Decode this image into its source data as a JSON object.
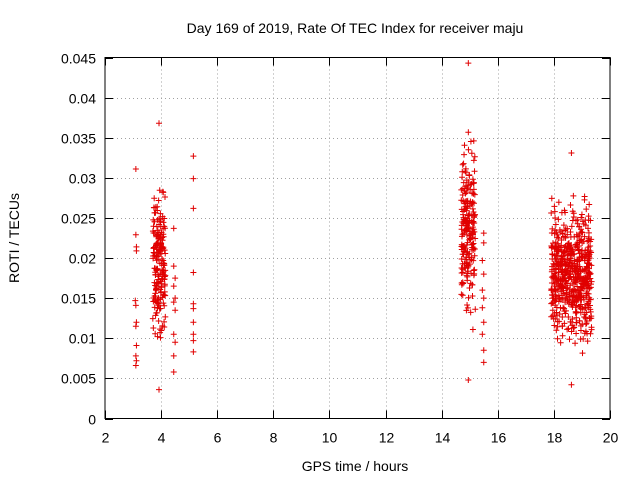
{
  "chart_data": {
    "type": "scatter",
    "title": "Day 169 of 2019, Rate Of TEC Index for receiver maju",
    "xlabel": "GPS time / hours",
    "ylabel": "ROTI / TECUs",
    "xlim": [
      2,
      20
    ],
    "ylim": [
      0,
      0.045
    ],
    "xticks": [
      "2",
      "4",
      "6",
      "8",
      "10",
      "12",
      "14",
      "16",
      "18",
      "20"
    ],
    "yticks": [
      "0",
      "0.005",
      "0.01",
      "0.015",
      "0.02",
      "0.025",
      "0.03",
      "0.035",
      "0.04",
      "0.045"
    ],
    "grid": true,
    "marker": "+",
    "color": "#e00000",
    "series": [
      {
        "name": "ROTI",
        "clusters": [
          {
            "x_start": 3.05,
            "x_end": 3.15,
            "points": [
              [
                3.1,
                0.0311
              ],
              [
                3.1,
                0.0229
              ],
              [
                3.12,
                0.0214
              ],
              [
                3.12,
                0.0209
              ],
              [
                3.08,
                0.0147
              ],
              [
                3.1,
                0.0141
              ],
              [
                3.12,
                0.012
              ],
              [
                3.1,
                0.0115
              ],
              [
                3.12,
                0.0091
              ],
              [
                3.1,
                0.0078
              ],
              [
                3.12,
                0.0072
              ],
              [
                3.1,
                0.0066
              ]
            ]
          },
          {
            "x_start": 3.7,
            "x_end": 4.15,
            "density": "dense",
            "y_range": [
              0.0036,
              0.0368
            ]
          },
          {
            "x_start": 4.4,
            "x_end": 4.55,
            "points": [
              [
                4.45,
                0.0237
              ],
              [
                4.45,
                0.019
              ],
              [
                4.5,
                0.0175
              ],
              [
                4.45,
                0.0165
              ],
              [
                4.5,
                0.015
              ],
              [
                4.45,
                0.0145
              ],
              [
                4.5,
                0.0135
              ],
              [
                4.45,
                0.0105
              ],
              [
                4.5,
                0.0095
              ],
              [
                4.45,
                0.0078
              ],
              [
                4.45,
                0.0058
              ]
            ]
          },
          {
            "x_start": 5.1,
            "x_end": 5.2,
            "points": [
              [
                5.15,
                0.0327
              ],
              [
                5.15,
                0.0299
              ],
              [
                5.15,
                0.0262
              ],
              [
                5.15,
                0.0182
              ],
              [
                5.15,
                0.0143
              ],
              [
                5.15,
                0.0137
              ],
              [
                5.15,
                0.012
              ],
              [
                5.15,
                0.0105
              ],
              [
                5.15,
                0.0097
              ],
              [
                5.15,
                0.0083
              ]
            ]
          },
          {
            "x_start": 14.7,
            "x_end": 15.2,
            "density": "dense",
            "y_range": [
              0.0048,
              0.0443
            ]
          },
          {
            "x_start": 15.4,
            "x_end": 15.6,
            "points": [
              [
                15.5,
                0.0231
              ],
              [
                15.5,
                0.0219
              ],
              [
                15.45,
                0.0197
              ],
              [
                15.5,
                0.018
              ],
              [
                15.45,
                0.016
              ],
              [
                15.5,
                0.015
              ],
              [
                15.45,
                0.0138
              ],
              [
                15.5,
                0.012
              ],
              [
                15.45,
                0.0105
              ],
              [
                15.5,
                0.0085
              ],
              [
                15.5,
                0.007
              ]
            ]
          },
          {
            "x_start": 17.9,
            "x_end": 19.35,
            "density": "dense",
            "y_range": [
              0.0042,
              0.0331
            ]
          }
        ]
      }
    ]
  }
}
